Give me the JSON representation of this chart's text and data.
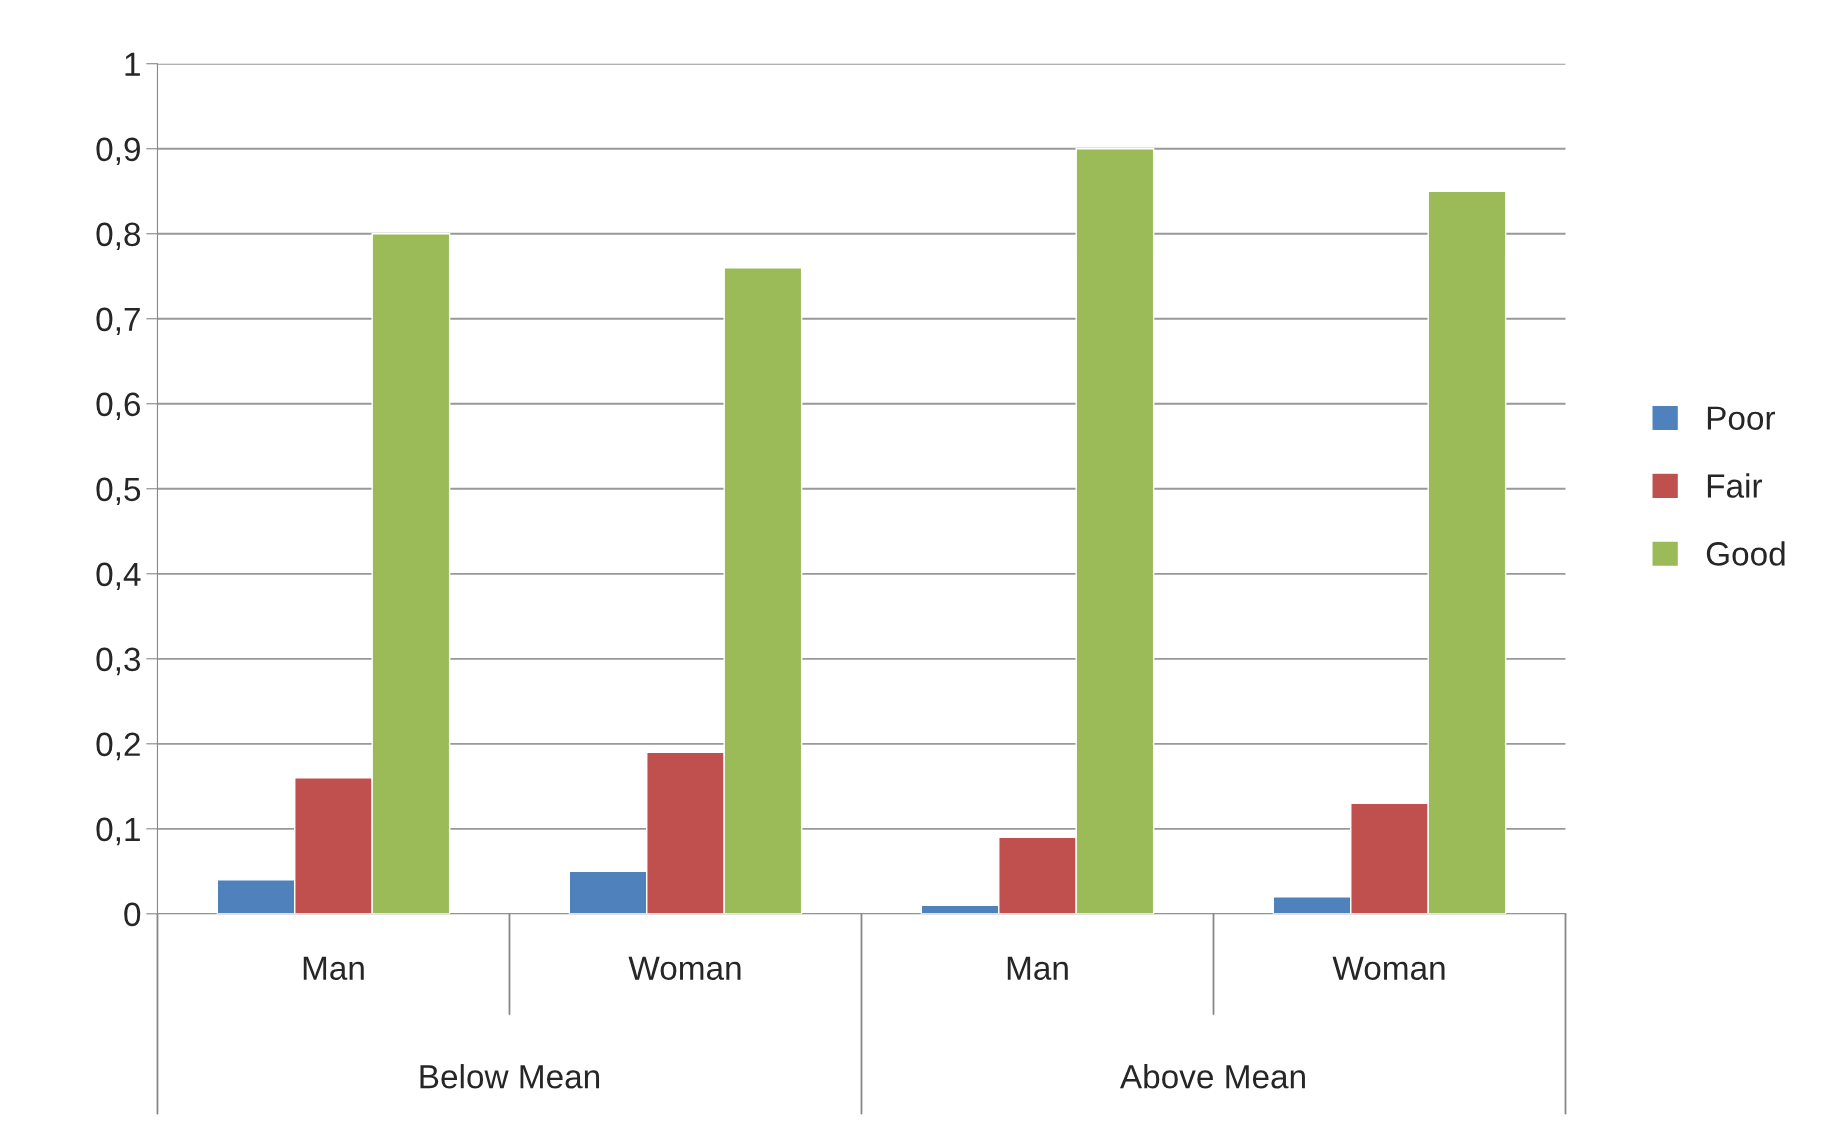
{
  "chart_data": {
    "type": "bar",
    "categories": [
      "Man",
      "Woman",
      "Man",
      "Woman"
    ],
    "series": [
      {
        "name": "Poor",
        "color": "#4f81bd",
        "values": [
          0.04,
          0.05,
          0.01,
          0.02
        ]
      },
      {
        "name": "Fair",
        "color": "#c0504d",
        "values": [
          0.16,
          0.19,
          0.09,
          0.13
        ]
      },
      {
        "name": "Good",
        "color": "#9bbb59",
        "values": [
          0.8,
          0.76,
          0.9,
          0.85
        ]
      }
    ],
    "annotations": [
      "Below Mean",
      "Above Mean"
    ],
    "ylim": [
      0,
      1
    ],
    "yticks": [
      0,
      {
        "value": 0.1,
        "label": "0,1"
      },
      {
        "value": 0.2,
        "label": "0,2"
      },
      {
        "value": 0.3,
        "label": "0,3"
      },
      {
        "value": 0.4,
        "label": "0,4"
      },
      {
        "value": 0.5,
        "label": "0,5"
      },
      {
        "value": 0.6,
        "label": "0,6"
      },
      {
        "value": 0.7,
        "label": "0,7"
      },
      {
        "value": 0.8,
        "label": "0,8"
      },
      {
        "value": 0.9,
        "label": "0,9"
      },
      1
    ],
    "grid": "y",
    "legend": "right"
  }
}
